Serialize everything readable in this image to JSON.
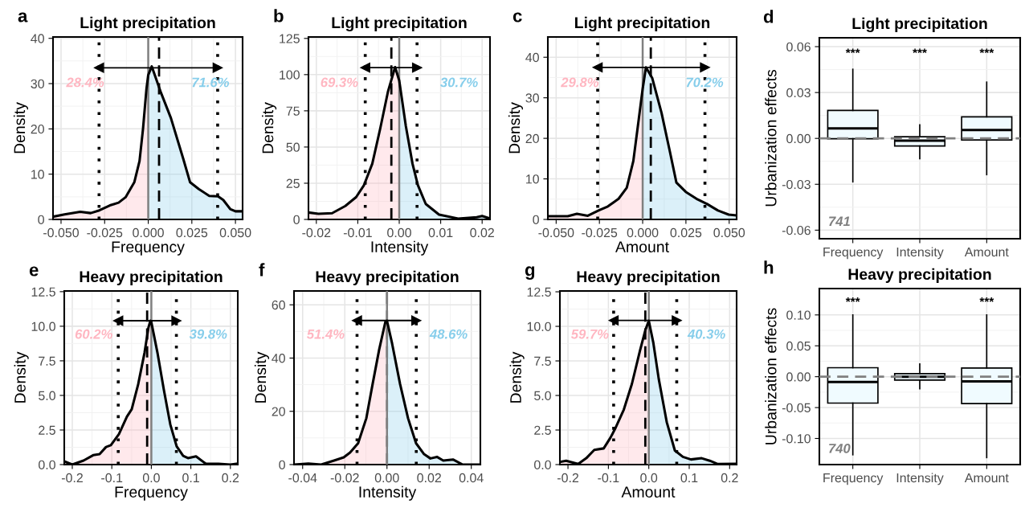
{
  "chart_data": [
    {
      "type": "area",
      "title": "Light precipitation",
      "xlabel": "Frequency",
      "ylabel": "Density",
      "xlim": [
        -0.0546,
        0.0541
      ],
      "ylim": [
        0,
        40.3
      ],
      "xticks": [
        {
          "value": -0.05,
          "label": "-0.050"
        },
        -0.025,
        {
          "value": 0,
          "label": "0.000"
        },
        0.025,
        {
          "value": 0.05,
          "label": "0.050"
        }
      ],
      "yticks": [
        0,
        10,
        20,
        30,
        40
      ],
      "grid": true,
      "series": [
        {
          "type": "area",
          "color": "#ffb6c1",
          "x": [
            -0.0546,
            -0.048,
            -0.039,
            -0.033,
            -0.028,
            -0.022,
            -0.017,
            -0.013,
            -0.008,
            -0.005,
            -0.003,
            -0.001,
            0
          ],
          "values": [
            0.6,
            1.1,
            1.7,
            1.4,
            2.0,
            3.1,
            3.7,
            4.9,
            8.2,
            12.9,
            20.0,
            28.9,
            31.9
          ]
        },
        {
          "type": "area",
          "color": "#87ceeb",
          "x": [
            0,
            0.002,
            0.007,
            0.013,
            0.02,
            0.024,
            0.029,
            0.035,
            0.04,
            0.043,
            0.047,
            0.05,
            0.0541
          ],
          "values": [
            31.9,
            33.8,
            28.3,
            22.4,
            13.5,
            8.2,
            6.7,
            5.2,
            5.1,
            4.3,
            2.3,
            1.8,
            1.8
          ]
        },
        {
          "type": "line",
          "color": "#000000",
          "x": [
            -0.0546,
            -0.048,
            -0.039,
            -0.033,
            -0.028,
            -0.022,
            -0.017,
            -0.013,
            -0.008,
            -0.005,
            -0.003,
            -0.001,
            0,
            0.002,
            0.007,
            0.013,
            0.02,
            0.024,
            0.029,
            0.035,
            0.04,
            0.043,
            0.047,
            0.05,
            0.0541
          ],
          "values": [
            0.6,
            1.1,
            1.7,
            1.4,
            2.0,
            3.1,
            3.7,
            4.9,
            8.2,
            12.9,
            20.0,
            28.9,
            31.9,
            33.8,
            28.3,
            22.4,
            13.5,
            8.2,
            6.7,
            5.2,
            5.1,
            4.3,
            2.3,
            1.8,
            1.8
          ]
        },
        {
          "type": "line",
          "color": "#000000",
          "marker": "triangle",
          "x": [
            -0.0282,
            0.0398
          ],
          "values": [
            33.5,
            33.5
          ]
        }
      ],
      "ref_lines": [
        {
          "axis": "x",
          "value": 0,
          "color": "#808080",
          "line_style": "solid"
        },
        {
          "axis": "x",
          "value": 0.0062,
          "color": "#000000",
          "line_style": "dashed"
        },
        {
          "axis": "x",
          "value": -0.0282,
          "color": "#000000",
          "line_style": "dotted"
        },
        {
          "axis": "x",
          "value": 0.0398,
          "color": "#000000",
          "line_style": "dotted"
        }
      ],
      "annotations": [
        "a",
        "28.4%",
        "71.6%"
      ]
    },
    {
      "type": "area",
      "title": "Light precipitation",
      "xlabel": "Intensity",
      "ylabel": "Density",
      "xlim": [
        -0.0219,
        0.0219
      ],
      "ylim": [
        0,
        126
      ],
      "xticks": [
        -0.02,
        -0.01,
        {
          "value": 0,
          "label": "0.00"
        },
        0.01,
        0.02
      ],
      "yticks": [
        0,
        25,
        50,
        75,
        100,
        125
      ],
      "grid": true,
      "series": [
        {
          "type": "area",
          "color": "#ffb6c1",
          "x": [
            -0.0219,
            -0.0195,
            -0.0162,
            -0.013,
            -0.0104,
            -0.0085,
            -0.0065,
            -0.0046,
            -0.0027,
            -0.001,
            0
          ],
          "values": [
            4.8,
            3.9,
            4.3,
            9.3,
            15.4,
            23.7,
            38.5,
            62.6,
            88.5,
            105.2,
            95.9
          ]
        },
        {
          "type": "area",
          "color": "#87ceeb",
          "x": [
            0,
            0.0016,
            0.0032,
            0.0045,
            0.0064,
            0.0096,
            0.0142,
            0.0187,
            0.02,
            0.0219
          ],
          "values": [
            95.9,
            64.4,
            38.5,
            23.7,
            10.7,
            3.3,
            0.6,
            1.5,
            2.4,
            0.6
          ]
        },
        {
          "type": "line",
          "color": "#000000",
          "x": [
            -0.0219,
            -0.0195,
            -0.0162,
            -0.013,
            -0.0104,
            -0.0085,
            -0.0065,
            -0.0046,
            -0.0027,
            -0.001,
            0,
            0.0016,
            0.0032,
            0.0045,
            0.0064,
            0.0096,
            0.0142,
            0.0187,
            0.02,
            0.0219
          ],
          "values": [
            4.8,
            3.9,
            4.3,
            9.3,
            15.4,
            23.7,
            38.5,
            62.6,
            88.5,
            105.2,
            95.9,
            64.4,
            38.5,
            23.7,
            10.7,
            3.3,
            0.6,
            1.5,
            2.4,
            0.6
          ]
        },
        {
          "type": "line",
          "color": "#000000",
          "marker": "triangle",
          "x": [
            -0.0082,
            0.0043
          ],
          "values": [
            104.8,
            104.8
          ]
        }
      ],
      "ref_lines": [
        {
          "axis": "x",
          "value": 0,
          "color": "#808080",
          "line_style": "solid"
        },
        {
          "axis": "x",
          "value": -0.0019,
          "color": "#000000",
          "line_style": "dashed"
        },
        {
          "axis": "x",
          "value": -0.0082,
          "color": "#000000",
          "line_style": "dotted"
        },
        {
          "axis": "x",
          "value": 0.0043,
          "color": "#000000",
          "line_style": "dotted"
        }
      ],
      "annotations": [
        "b",
        "69.3%",
        "30.7%"
      ]
    },
    {
      "type": "area",
      "title": "Light precipitation",
      "xlabel": "Amount",
      "ylabel": "Density",
      "xlim": [
        -0.0548,
        0.0543
      ],
      "ylim": [
        0,
        45
      ],
      "xticks": [
        {
          "value": -0.05,
          "label": "-0.050"
        },
        -0.025,
        {
          "value": 0,
          "label": "0.000"
        },
        0.025,
        {
          "value": 0.05,
          "label": "0.050"
        }
      ],
      "yticks": [
        0,
        10,
        20,
        30,
        40
      ],
      "grid": true,
      "series": [
        {
          "type": "area",
          "color": "#ffb6c1",
          "x": [
            -0.0548,
            -0.0433,
            -0.038,
            -0.0317,
            -0.0255,
            -0.0201,
            -0.0139,
            -0.0092,
            -0.0054,
            -0.0022,
            0
          ],
          "values": [
            0.8,
            0.8,
            1.4,
            0.9,
            2.2,
            3.2,
            5.1,
            7.8,
            14.4,
            24.9,
            32.2
          ]
        },
        {
          "type": "area",
          "color": "#87ceeb",
          "x": [
            0,
            0.0019,
            0.0055,
            0.0109,
            0.0156,
            0.0195,
            0.0249,
            0.0311,
            0.0373,
            0.0435,
            0.0497,
            0.0543
          ],
          "values": [
            32.2,
            37.5,
            34.9,
            26.3,
            17.0,
            9.1,
            6.8,
            5.1,
            3.8,
            2.2,
            1.2,
            1.0
          ]
        },
        {
          "type": "line",
          "color": "#000000",
          "x": [
            -0.0548,
            -0.0433,
            -0.038,
            -0.0317,
            -0.0255,
            -0.0201,
            -0.0139,
            -0.0092,
            -0.0054,
            -0.0022,
            0,
            0.0019,
            0.0055,
            0.0109,
            0.0156,
            0.0195,
            0.0249,
            0.0311,
            0.0373,
            0.0435,
            0.0497,
            0.0543
          ],
          "values": [
            0.8,
            0.8,
            1.4,
            0.9,
            2.2,
            3.2,
            5.1,
            7.8,
            14.4,
            24.9,
            32.2,
            37.5,
            34.9,
            26.3,
            17.0,
            9.1,
            6.8,
            5.1,
            3.8,
            2.2,
            1.2,
            1.0
          ]
        },
        {
          "type": "line",
          "color": "#000000",
          "marker": "triangle",
          "x": [
            -0.026,
            0.036
          ],
          "values": [
            37.5,
            37.5
          ]
        }
      ],
      "ref_lines": [
        {
          "axis": "x",
          "value": 0,
          "color": "#808080",
          "line_style": "solid"
        },
        {
          "axis": "x",
          "value": 0.0047,
          "color": "#000000",
          "line_style": "dashed"
        },
        {
          "axis": "x",
          "value": -0.026,
          "color": "#000000",
          "line_style": "dotted"
        },
        {
          "axis": "x",
          "value": 0.036,
          "color": "#000000",
          "line_style": "dotted"
        }
      ],
      "annotations": [
        "c",
        "29.8%",
        "70.2%"
      ]
    },
    {
      "type": "box",
      "title": "Light precipitation",
      "ylabel": "Urbanization effects",
      "categories": [
        "Frequency",
        "Intensity",
        "Amount"
      ],
      "ylim": [
        -0.0656,
        0.0658
      ],
      "yticks": [
        -0.06,
        -0.03,
        {
          "value": 0,
          "label": "0.00"
        },
        0.03,
        0.06
      ],
      "grid": true,
      "series": [
        {
          "color": "#f0fbff",
          "value_labels": [
            "***",
            "***",
            "***"
          ],
          "boxes": [
            {
              "low": -0.0284,
              "q1": -0.0002,
              "median": 0.0065,
              "q3": 0.0183,
              "high": 0.0452
            },
            {
              "low": -0.0132,
              "q1": -0.005,
              "median": -0.0015,
              "q3": 0.0011,
              "high": 0.0088
            },
            {
              "low": -0.0237,
              "q1": -0.001,
              "median": 0.0055,
              "q3": 0.0141,
              "high": 0.0368
            }
          ]
        }
      ],
      "ref_lines": [
        {
          "axis": "y",
          "value": 0,
          "color": "#808080",
          "line_style": "dashed"
        }
      ],
      "annotations": [
        "d",
        "741"
      ]
    },
    {
      "type": "area",
      "title": "Heavy precipitation",
      "xlabel": "Frequency",
      "ylabel": "Density",
      "xlim": [
        -0.2203,
        0.2187
      ],
      "ylim": [
        0,
        12.55
      ],
      "xticks": [
        -0.2,
        -0.1,
        {
          "value": 0,
          "label": "0.0"
        },
        0.1,
        0.2
      ],
      "yticks": [
        {
          "value": 0,
          "label": "0.0"
        },
        2.5,
        {
          "value": 5,
          "label": "5.0"
        },
        7.5,
        {
          "value": 10,
          "label": "10.0"
        },
        12.5
      ],
      "grid": true,
      "series": [
        {
          "type": "area",
          "color": "#ffb6c1",
          "x": [
            -0.2203,
            -0.2,
            -0.1715,
            -0.1472,
            -0.1309,
            -0.1146,
            -0.1024,
            -0.082,
            -0.0618,
            -0.0496,
            -0.0333,
            -0.0171,
            -0.0073,
            -0.0024,
            0
          ],
          "values": [
            0.23,
            0,
            0.29,
            0.68,
            0.75,
            1.27,
            1.4,
            2.2,
            3.46,
            4.0,
            5.8,
            8.1,
            9.9,
            10.4,
            10.3
          ]
        },
        {
          "type": "area",
          "color": "#87ceeb",
          "x": [
            0,
            0.0154,
            0.0317,
            0.048,
            0.0642,
            0.0805,
            0.0927,
            0.113,
            0.1374,
            0.1699,
            0.2,
            0.2187
          ],
          "values": [
            10.3,
            8.1,
            5.4,
            2.9,
            1.31,
            0.63,
            0.47,
            0.59,
            0.07,
            0.05,
            0,
            0.07
          ]
        },
        {
          "type": "line",
          "color": "#000000",
          "x": [
            -0.2203,
            -0.2,
            -0.1715,
            -0.1472,
            -0.1309,
            -0.1146,
            -0.1024,
            -0.082,
            -0.0618,
            -0.0496,
            -0.0333,
            -0.0171,
            -0.0073,
            -0.0024,
            0,
            0.0154,
            0.0317,
            0.048,
            0.0642,
            0.0805,
            0.0927,
            0.113,
            0.1374,
            0.1699,
            0.2,
            0.2187
          ],
          "values": [
            0.23,
            0,
            0.29,
            0.68,
            0.75,
            1.27,
            1.4,
            2.2,
            3.46,
            4.0,
            5.8,
            8.1,
            9.9,
            10.4,
            10.3,
            8.1,
            5.4,
            2.9,
            1.31,
            0.63,
            0.47,
            0.59,
            0.07,
            0.05,
            0,
            0.07
          ]
        },
        {
          "type": "line",
          "color": "#000000",
          "marker": "triangle",
          "x": [
            -0.0837,
            0.0634
          ],
          "values": [
            10.4,
            10.4
          ]
        }
      ],
      "ref_lines": [
        {
          "axis": "x",
          "value": 0,
          "color": "#808080",
          "line_style": "solid"
        },
        {
          "axis": "x",
          "value": -0.0106,
          "color": "#000000",
          "line_style": "dashed"
        },
        {
          "axis": "x",
          "value": -0.0837,
          "color": "#000000",
          "line_style": "dotted"
        },
        {
          "axis": "x",
          "value": 0.0634,
          "color": "#000000",
          "line_style": "dotted"
        }
      ],
      "annotations": [
        "e",
        "60.2%",
        "39.8%"
      ]
    },
    {
      "type": "area",
      "title": "Heavy precipitation",
      "xlabel": "Intensity",
      "ylabel": "Density",
      "xlim": [
        -0.0441,
        0.0443
      ],
      "ylim": [
        0,
        65.2
      ],
      "xticks": [
        -0.04,
        -0.02,
        {
          "value": 0,
          "label": "0.00"
        },
        0.02,
        0.04
      ],
      "yticks": [
        0,
        20,
        40,
        60
      ],
      "grid": true,
      "series": [
        {
          "type": "area",
          "color": "#ffb6c1",
          "x": [
            -0.0441,
            -0.0373,
            -0.0312,
            -0.0251,
            -0.0205,
            -0.0175,
            -0.0137,
            -0.0098,
            -0.0068,
            -0.0037,
            -0.0007,
            0
          ],
          "values": [
            0,
            0.4,
            0,
            1.5,
            2.7,
            4.5,
            8.0,
            17.4,
            30.3,
            43.2,
            53.8,
            54.0
          ]
        },
        {
          "type": "area",
          "color": "#87ceeb",
          "x": [
            0,
            0.0024,
            0.0062,
            0.01,
            0.0138,
            0.0176,
            0.0206,
            0.0237,
            0.0267,
            0.0313,
            0.0359,
            0.0443
          ],
          "values": [
            54.0,
            45.6,
            30.3,
            17.4,
            8.0,
            3.9,
            2.3,
            2.9,
            1.5,
            1.9,
            0,
            0
          ]
        },
        {
          "type": "line",
          "color": "#000000",
          "x": [
            -0.0441,
            -0.0373,
            -0.0312,
            -0.0251,
            -0.0205,
            -0.0175,
            -0.0137,
            -0.0098,
            -0.0068,
            -0.0037,
            -0.0007,
            0,
            0.0024,
            0.0062,
            0.01,
            0.0138,
            0.0176,
            0.0206,
            0.0237,
            0.0267,
            0.0313,
            0.0359,
            0.0443
          ],
          "values": [
            0,
            0.4,
            0,
            1.5,
            2.7,
            4.5,
            8.0,
            17.4,
            30.3,
            43.2,
            53.8,
            54.0,
            45.6,
            30.3,
            17.4,
            8.0,
            3.9,
            2.3,
            2.9,
            1.5,
            1.9,
            0,
            0
          ]
        },
        {
          "type": "line",
          "color": "#000000",
          "marker": "triangle",
          "x": [
            -0.0142,
            0.0139
          ],
          "values": [
            54.1,
            54.1
          ]
        }
      ],
      "ref_lines": [
        {
          "axis": "x",
          "value": 0,
          "color": "#808080",
          "line_style": "dashed"
        },
        {
          "axis": "x",
          "value": 0,
          "color": "#808080",
          "line_style": "solid"
        },
        {
          "axis": "x",
          "value": -0.0142,
          "color": "#000000",
          "line_style": "dotted"
        },
        {
          "axis": "x",
          "value": 0.0139,
          "color": "#000000",
          "line_style": "dotted"
        }
      ],
      "annotations": [
        "f",
        "51.4%",
        "48.6%"
      ]
    },
    {
      "type": "area",
      "title": "Heavy precipitation",
      "xlabel": "Amount",
      "ylabel": "Density",
      "xlim": [
        -0.22,
        0.2173
      ],
      "ylim": [
        0,
        12.56
      ],
      "xticks": [
        -0.2,
        -0.1,
        {
          "value": 0,
          "label": "0.0"
        },
        0.1,
        0.2
      ],
      "yticks": [
        {
          "value": 0,
          "label": "0.0"
        },
        2.5,
        {
          "value": 5,
          "label": "5.0"
        },
        7.5,
        {
          "value": 10,
          "label": "10.0"
        },
        12.5
      ],
      "grid": true,
      "series": [
        {
          "type": "area",
          "color": "#ffb6c1",
          "x": [
            -0.22,
            -0.2047,
            -0.1748,
            -0.1548,
            -0.1349,
            -0.1116,
            -0.095,
            -0.0817,
            -0.0618,
            -0.0419,
            -0.0219,
            -0.0086,
            0
          ],
          "values": [
            0.19,
            0.28,
            0.04,
            0.46,
            1.06,
            1.17,
            1.94,
            2.69,
            3.98,
            5.83,
            8.24,
            9.72,
            10.4
          ]
        },
        {
          "type": "area",
          "color": "#87ceeb",
          "x": [
            0,
            0.0113,
            0.0246,
            0.0445,
            0.0645,
            0.0844,
            0.1043,
            0.1309,
            0.1508,
            0.1708,
            0.2173
          ],
          "values": [
            10.4,
            8.8,
            6.2,
            3.06,
            1.02,
            0.56,
            0.37,
            0.46,
            0.28,
            0.04,
            0.06
          ]
        },
        {
          "type": "line",
          "color": "#000000",
          "x": [
            -0.22,
            -0.2047,
            -0.1748,
            -0.1548,
            -0.1349,
            -0.1116,
            -0.095,
            -0.0817,
            -0.0618,
            -0.0419,
            -0.0219,
            -0.0086,
            0,
            0.0113,
            0.0246,
            0.0445,
            0.0645,
            0.0844,
            0.1043,
            0.1309,
            0.1508,
            0.1708,
            0.2173
          ],
          "values": [
            0.19,
            0.28,
            0.04,
            0.46,
            1.06,
            1.17,
            1.94,
            2.69,
            3.98,
            5.83,
            8.24,
            9.72,
            10.4,
            8.8,
            6.2,
            3.06,
            1.02,
            0.56,
            0.37,
            0.46,
            0.28,
            0.04,
            0.06
          ]
        },
        {
          "type": "line",
          "color": "#000000",
          "marker": "triangle",
          "x": [
            -0.087,
            0.0691
          ],
          "values": [
            10.43,
            10.43
          ]
        }
      ],
      "ref_lines": [
        {
          "axis": "x",
          "value": 0,
          "color": "#808080",
          "line_style": "solid"
        },
        {
          "axis": "x",
          "value": -0.0086,
          "color": "#000000",
          "line_style": "dashed"
        },
        {
          "axis": "x",
          "value": -0.087,
          "color": "#000000",
          "line_style": "dotted"
        },
        {
          "axis": "x",
          "value": 0.0691,
          "color": "#000000",
          "line_style": "dotted"
        }
      ],
      "annotations": [
        "g",
        "59.7%",
        "40.3%"
      ]
    },
    {
      "type": "box",
      "title": "Heavy precipitation",
      "ylabel": "Urbanization effects",
      "categories": [
        "Frequency",
        "Intensity",
        "Amount"
      ],
      "ylim": [
        -0.1423,
        0.1427
      ],
      "yticks": [
        {
          "value": -0.1,
          "label": "-0.10"
        },
        -0.05,
        {
          "value": 0,
          "label": "0.00"
        },
        0.05,
        {
          "value": 0.1,
          "label": "0.10"
        }
      ],
      "grid": true,
      "series": [
        {
          "color": "#f0fbff",
          "value_labels": [
            "***",
            null,
            "***"
          ],
          "boxes": [
            {
              "low": -0.1264,
              "q1": -0.0427,
              "median": -0.0086,
              "q3": 0.0145,
              "high": 0.1
            },
            {
              "low": -0.0195,
              "q1": -0.0055,
              "median": 0.0,
              "q3": 0.005,
              "high": 0.0205
            },
            {
              "low": -0.131,
              "q1": -0.0436,
              "median": -0.0077,
              "q3": 0.0141,
              "high": 0.1
            }
          ]
        }
      ],
      "ref_lines": [
        {
          "axis": "y",
          "value": 0,
          "color": "#808080",
          "line_style": "dashed"
        }
      ],
      "annotations": [
        "h",
        "740"
      ]
    }
  ]
}
